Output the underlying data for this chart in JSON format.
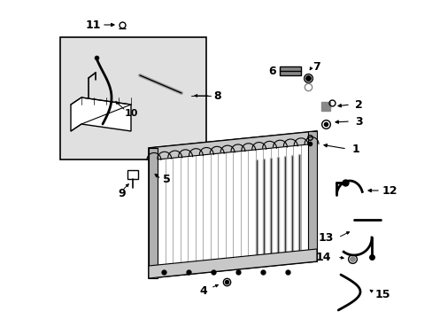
{
  "bg_color": "#ffffff",
  "fig_width": 4.89,
  "fig_height": 3.6,
  "dpi": 100,
  "inset_fill": "#e0e0e0",
  "radiator_fill": "#f0f0f0",
  "part_color": "#333333"
}
